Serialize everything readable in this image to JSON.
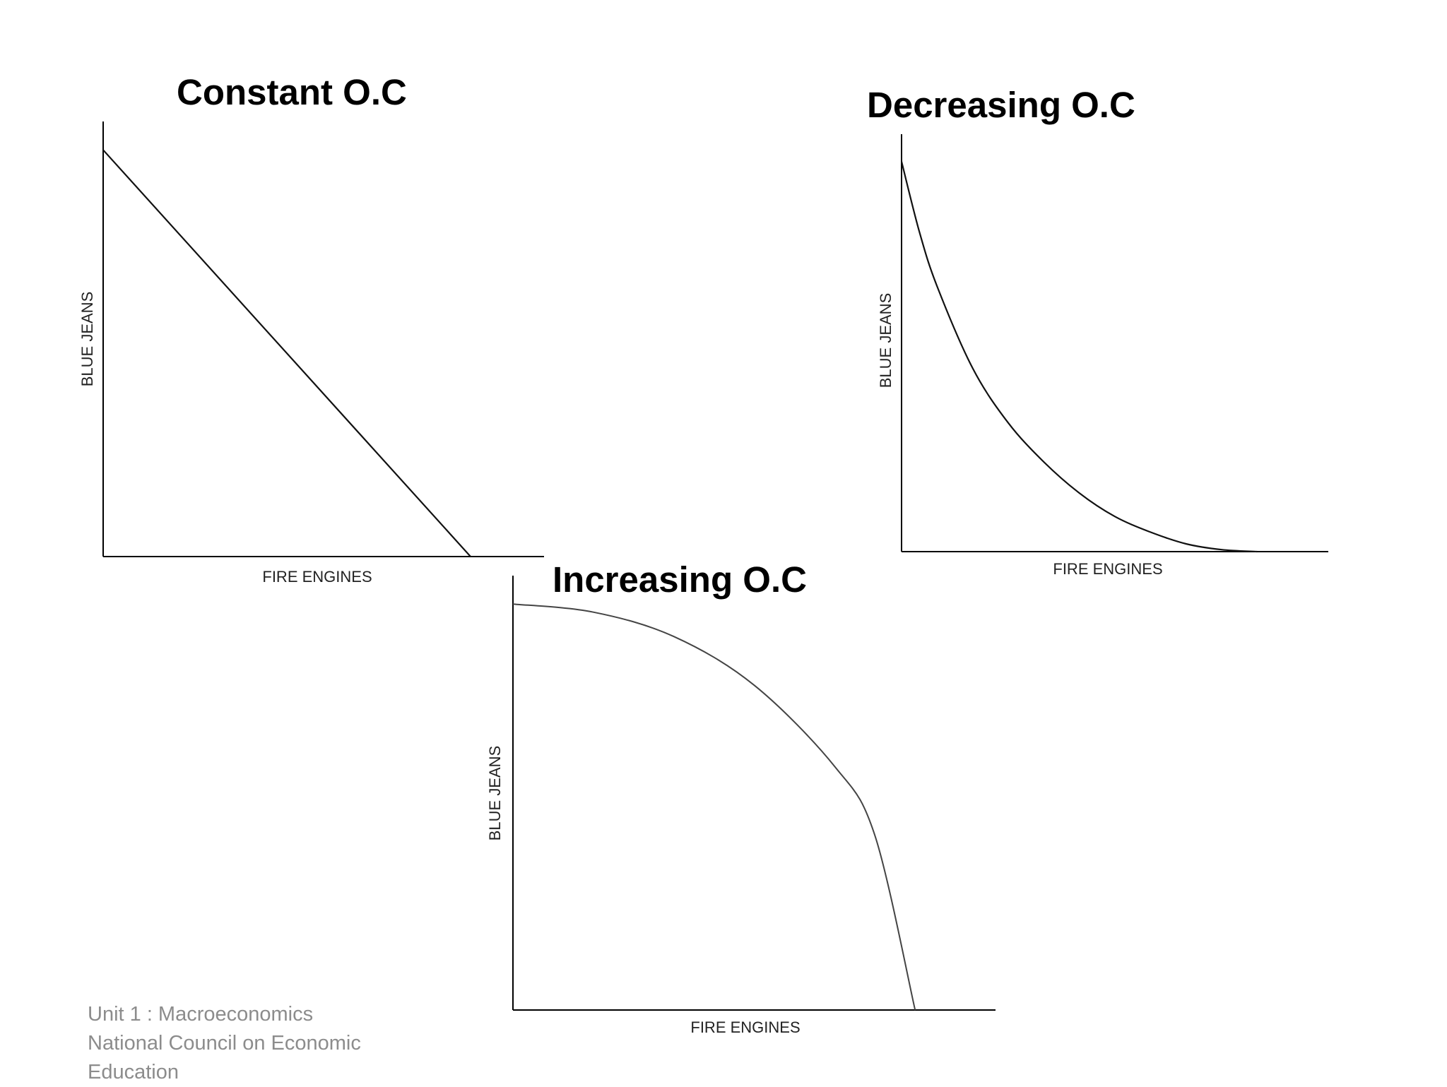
{
  "chart_data": [
    {
      "type": "line",
      "title": "Constant O.C",
      "xlabel": "FIRE ENGINES",
      "ylabel": "BLUE JEANS",
      "shape": "straight line (linear frontier)",
      "x": [
        0,
        1
      ],
      "y": [
        1,
        0
      ],
      "xlim": [
        0,
        1.2
      ],
      "ylim": [
        0,
        1.07
      ],
      "grid": false,
      "ticks": false
    },
    {
      "type": "line",
      "title": "Decreasing O.C",
      "xlabel": "FIRE ENGINES",
      "ylabel": "BLUE JEANS",
      "shape": "convex curve toward origin",
      "x": [
        0,
        0.05,
        0.1,
        0.2,
        0.3,
        0.4,
        0.5,
        0.6,
        0.7,
        0.8,
        0.9,
        1.0
      ],
      "y": [
        1.0,
        0.82,
        0.68,
        0.47,
        0.33,
        0.23,
        0.15,
        0.09,
        0.05,
        0.02,
        0.005,
        0.0
      ],
      "xlim": [
        0,
        1.2
      ],
      "ylim": [
        0,
        1.07
      ],
      "grid": false,
      "ticks": false
    },
    {
      "type": "line",
      "title": "Increasing O.C",
      "xlabel": "FIRE ENGINES",
      "ylabel": "BLUE JEANS",
      "shape": "concave (bowed-out) curve",
      "x": [
        0,
        0.2,
        0.4,
        0.6,
        0.8,
        0.9,
        1.0
      ],
      "y": [
        1.0,
        0.98,
        0.92,
        0.8,
        0.6,
        0.43,
        0.0
      ],
      "xlim": [
        0,
        1.2
      ],
      "ylim": [
        0,
        1.07
      ],
      "grid": false,
      "ticks": false
    }
  ],
  "footer": {
    "lines": [
      "Unit 1 : Macroeconomics",
      "National Council on Economic",
      "Education"
    ]
  }
}
